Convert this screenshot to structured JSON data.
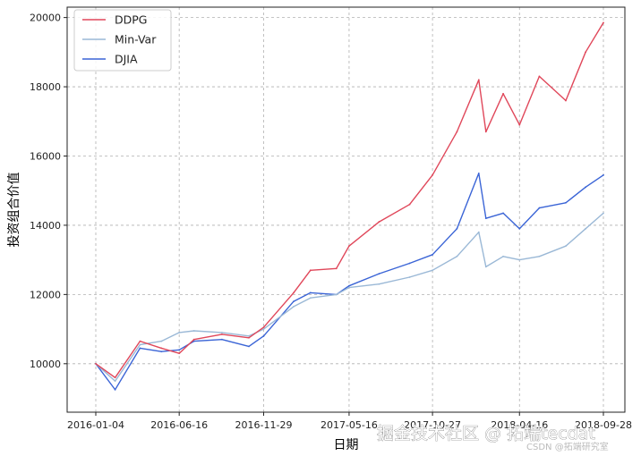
{
  "chart_data": {
    "type": "line",
    "title": "",
    "xlabel": "日期",
    "ylabel": "投资组合价值",
    "x_ticks": [
      "2016-01-04",
      "2016-06-16",
      "2016-11-29",
      "2017-05-16",
      "2017-10-27",
      "2018-04-16",
      "2018-09-28"
    ],
    "y_ticks": [
      10000,
      12000,
      14000,
      16000,
      18000,
      20000
    ],
    "ylim": [
      8600,
      20300
    ],
    "grid": true,
    "legend_position": "top-left",
    "x": [
      "2016-01-04",
      "2016-02-11",
      "2016-03-31",
      "2016-05-12",
      "2016-06-16",
      "2016-07-15",
      "2016-09-08",
      "2016-10-31",
      "2016-11-29",
      "2017-01-27",
      "2017-03-01",
      "2017-04-21",
      "2017-05-16",
      "2017-07-14",
      "2017-09-12",
      "2017-10-27",
      "2017-12-14",
      "2018-01-26",
      "2018-02-09",
      "2018-03-15",
      "2018-04-16",
      "2018-05-25",
      "2018-07-16",
      "2018-08-24",
      "2018-09-28"
    ],
    "series": [
      {
        "name": "DDPG",
        "color": "#e0475a",
        "values": [
          10000,
          9600,
          10650,
          10450,
          10300,
          10700,
          10850,
          10750,
          11050,
          12050,
          12700,
          12750,
          13400,
          14100,
          14600,
          15450,
          16700,
          18200,
          16700,
          17800,
          16900,
          18300,
          17600,
          19000,
          19850
        ]
      },
      {
        "name": "Min-Var",
        "color": "#9ab8d6",
        "values": [
          10000,
          9500,
          10550,
          10650,
          10900,
          10950,
          10900,
          10800,
          11000,
          11650,
          11900,
          12000,
          12200,
          12300,
          12500,
          12700,
          13100,
          13800,
          12800,
          13100,
          13000,
          13100,
          13400,
          13900,
          14350
        ]
      },
      {
        "name": "DJIA",
        "color": "#3a64d6",
        "values": [
          10000,
          9250,
          10450,
          10350,
          10400,
          10650,
          10700,
          10500,
          10800,
          11800,
          12050,
          12000,
          12250,
          12600,
          12900,
          13150,
          13900,
          15500,
          14200,
          14350,
          13900,
          14500,
          14650,
          15100,
          15450
        ]
      }
    ]
  },
  "watermark": {
    "main": "掘金技术社区 @ 拓端tecdat",
    "sub": "CSDN @拓端研究室"
  }
}
